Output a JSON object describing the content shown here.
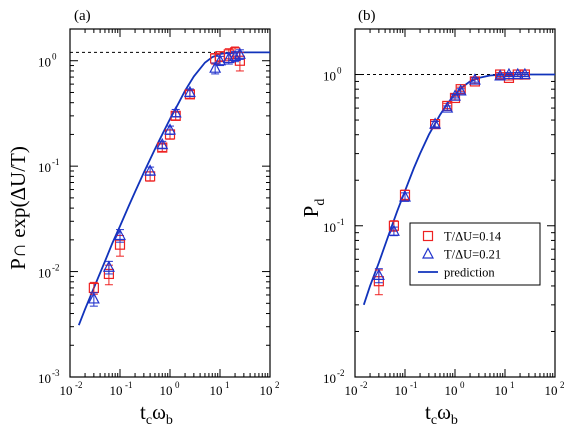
{
  "chart_data": [
    {
      "type": "scatter",
      "panel_label": "(a)",
      "xlabel": "t_c ω_b",
      "ylabel": "P∩ exp(ΔU/T)",
      "x_scale": "log",
      "y_scale": "log",
      "xlim": [
        0.01,
        100
      ],
      "ylim": [
        0.001,
        2
      ],
      "x_ticks": [
        0.01,
        0.1,
        1,
        10,
        100
      ],
      "y_ticks": [
        0.001,
        0.01,
        0.1,
        1
      ],
      "reference_line": 1.2,
      "series": [
        {
          "marker": "square",
          "color": "#ee2222",
          "x": [
            0.03,
            0.06,
            0.1,
            0.4,
            0.7,
            1.0,
            1.3,
            2.5,
            8,
            10,
            15,
            20,
            25
          ],
          "y": [
            0.007,
            0.0095,
            0.018,
            0.08,
            0.15,
            0.2,
            0.3,
            0.48,
            1.05,
            1.1,
            1.15,
            1.2,
            1.0
          ],
          "err": [
            0.0009,
            0.002,
            0.004,
            0.008,
            0.012,
            0.02,
            0.025,
            0.04,
            0.12,
            0.12,
            0.15,
            0.15,
            0.2
          ]
        },
        {
          "marker": "triangle",
          "color": "#2233cc",
          "x": [
            0.03,
            0.06,
            0.1,
            0.4,
            0.7,
            1.0,
            1.3,
            2.5,
            8,
            10,
            15,
            20,
            25
          ],
          "y": [
            0.0055,
            0.011,
            0.022,
            0.09,
            0.16,
            0.22,
            0.32,
            0.5,
            0.85,
            1.0,
            1.05,
            1.1,
            1.15
          ],
          "err": [
            0.0008,
            0.0015,
            0.003,
            0.008,
            0.012,
            0.02,
            0.025,
            0.04,
            0.1,
            0.1,
            0.12,
            0.12,
            0.12
          ]
        }
      ],
      "prediction": {
        "color": "#1133bb",
        "x": [
          0.015,
          0.02,
          0.03,
          0.05,
          0.07,
          0.1,
          0.15,
          0.2,
          0.3,
          0.5,
          0.7,
          1,
          1.5,
          2,
          3,
          5,
          7,
          10,
          15,
          20,
          30,
          50,
          100
        ],
        "y": [
          0.0031,
          0.0044,
          0.007,
          0.0125,
          0.0185,
          0.027,
          0.042,
          0.057,
          0.087,
          0.145,
          0.2,
          0.28,
          0.4,
          0.52,
          0.71,
          0.96,
          1.08,
          1.16,
          1.19,
          1.2,
          1.2,
          1.2,
          1.2
        ]
      }
    },
    {
      "type": "scatter",
      "panel_label": "(b)",
      "xlabel": "t_c ω_b",
      "ylabel": "P_d",
      "x_scale": "log",
      "y_scale": "log",
      "xlim": [
        0.01,
        100
      ],
      "ylim": [
        0.01,
        2
      ],
      "x_ticks": [
        0.01,
        0.1,
        1,
        10,
        100
      ],
      "y_ticks": [
        0.01,
        0.1,
        1
      ],
      "reference_line": 1.0,
      "legend_position": "bottom-right",
      "series": [
        {
          "name": "T/ΔU=0.14",
          "marker": "square",
          "color": "#ee2222",
          "x": [
            0.03,
            0.06,
            0.1,
            0.4,
            0.7,
            1.0,
            1.3,
            2.5,
            8,
            12,
            18,
            25
          ],
          "y": [
            0.043,
            0.1,
            0.16,
            0.47,
            0.62,
            0.7,
            0.8,
            0.9,
            1.0,
            0.95,
            1.0,
            1.0
          ],
          "err": [
            0.008,
            0.008,
            0.012,
            0.02,
            0.025,
            0.02,
            0.025,
            0.03,
            0.03,
            0.03,
            0.03,
            0.03
          ]
        },
        {
          "name": "T/ΔU=0.21",
          "marker": "triangle",
          "color": "#2233cc",
          "x": [
            0.03,
            0.06,
            0.1,
            0.4,
            0.7,
            1.0,
            1.3,
            2.5,
            8,
            12,
            18,
            25
          ],
          "y": [
            0.047,
            0.092,
            0.155,
            0.47,
            0.6,
            0.72,
            0.78,
            0.92,
            0.98,
            1.0,
            1.0,
            1.0
          ],
          "err": [
            0.005,
            0.006,
            0.01,
            0.02,
            0.02,
            0.02,
            0.025,
            0.03,
            0.03,
            0.03,
            0.03,
            0.03
          ]
        }
      ],
      "prediction": {
        "name": "prediction",
        "color": "#1133bb",
        "x": [
          0.015,
          0.02,
          0.03,
          0.05,
          0.07,
          0.1,
          0.15,
          0.2,
          0.3,
          0.5,
          0.7,
          1,
          1.5,
          2,
          3,
          5,
          7,
          10,
          20,
          50,
          100
        ],
        "y": [
          0.03,
          0.04,
          0.057,
          0.092,
          0.125,
          0.17,
          0.24,
          0.3,
          0.4,
          0.54,
          0.64,
          0.74,
          0.84,
          0.9,
          0.95,
          0.985,
          0.993,
          0.997,
          1.0,
          1.0,
          1.0
        ]
      }
    }
  ]
}
